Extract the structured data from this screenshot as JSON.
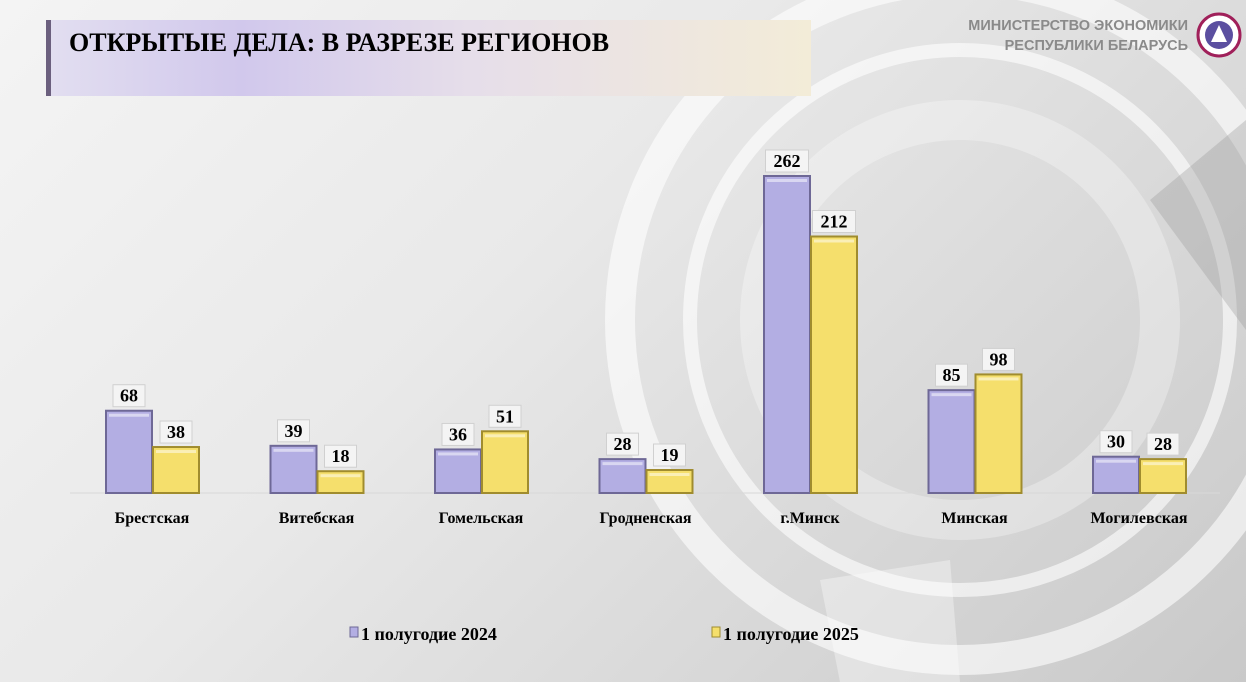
{
  "header": {
    "title": "ОТКРЫТЫЕ ДЕЛА: В РАЗРЕЗЕ РЕГИОНОВ",
    "ministry_line1": "МИНИСТЕРСТВО ЭКОНОМИКИ",
    "ministry_line2": "РЕСПУБЛИКИ БЕЛАРУСЬ"
  },
  "chart_data": {
    "type": "bar",
    "title": "ОТКРЫТЫЕ ДЕЛА: В РАЗРЕЗЕ РЕГИОНОВ",
    "categories": [
      "Брестская",
      "Витебская",
      "Гомельская",
      "Гродненская",
      "г.Минск",
      "Минская",
      "Могилевская"
    ],
    "series": [
      {
        "name": "1 полугодие 2024",
        "color": "#b3aee3",
        "values": [
          68,
          39,
          36,
          28,
          262,
          85,
          30
        ]
      },
      {
        "name": "1 полугодие 2025",
        "color": "#f5df6c",
        "values": [
          38,
          18,
          51,
          19,
          212,
          98,
          28
        ]
      }
    ],
    "xlabel": "",
    "ylabel": "",
    "ylim": [
      0,
      262
    ],
    "grid": false,
    "legend": "bottom"
  }
}
